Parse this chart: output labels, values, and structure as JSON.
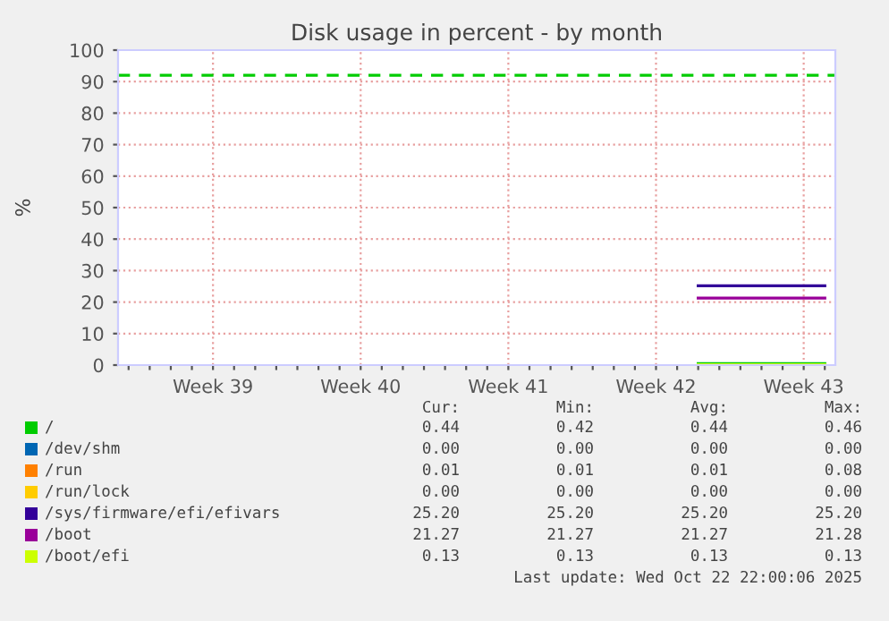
{
  "chart_data": {
    "type": "line",
    "title": "Disk usage in percent - by month",
    "ylabel": "%",
    "categories": [
      null,
      null,
      null,
      null,
      "Week 39",
      null,
      null,
      null,
      null,
      null,
      null,
      "Week 40",
      null,
      null,
      null,
      null,
      null,
      null,
      "Week 41",
      null,
      null,
      null,
      null,
      null,
      null,
      "Week 42",
      null,
      null,
      null,
      null,
      null,
      null,
      "Week 43",
      null
    ],
    "ylim": [
      0,
      100
    ],
    "yticks": [
      0,
      10,
      20,
      30,
      40,
      50,
      60,
      70,
      80,
      90,
      100
    ],
    "grid": true,
    "legend": "bottom",
    "series": [
      {
        "name": "/",
        "color": "#00cc00",
        "values": [
          null,
          null,
          null,
          null,
          null,
          null,
          null,
          null,
          null,
          null,
          null,
          null,
          null,
          null,
          null,
          null,
          null,
          null,
          null,
          null,
          null,
          null,
          null,
          null,
          null,
          null,
          null,
          0.44,
          0.44,
          0.44,
          0.44,
          0.44,
          0.44,
          0.44
        ]
      },
      {
        "name": "/dev/shm",
        "color": "#0066b3",
        "values": [
          null,
          null,
          null,
          null,
          null,
          null,
          null,
          null,
          null,
          null,
          null,
          null,
          null,
          null,
          null,
          null,
          null,
          null,
          null,
          null,
          null,
          null,
          null,
          null,
          null,
          null,
          null,
          null,
          null,
          null,
          null,
          null,
          null,
          null
        ]
      },
      {
        "name": "/run",
        "color": "#ff8000",
        "values": [
          null,
          null,
          null,
          null,
          null,
          null,
          null,
          null,
          null,
          null,
          null,
          null,
          null,
          null,
          null,
          null,
          null,
          null,
          null,
          null,
          null,
          null,
          null,
          null,
          null,
          null,
          null,
          null,
          null,
          null,
          null,
          null,
          null,
          null
        ]
      },
      {
        "name": "/run/lock",
        "color": "#ffcc00",
        "values": [
          null,
          null,
          null,
          null,
          null,
          null,
          null,
          null,
          null,
          null,
          null,
          null,
          null,
          null,
          null,
          null,
          null,
          null,
          null,
          null,
          null,
          null,
          null,
          null,
          null,
          null,
          null,
          null,
          null,
          null,
          null,
          null,
          null,
          null
        ]
      },
      {
        "name": "/sys/firmware/efi/efivars",
        "color": "#330099",
        "values": [
          null,
          null,
          null,
          null,
          null,
          null,
          null,
          null,
          null,
          null,
          null,
          null,
          null,
          null,
          null,
          null,
          null,
          null,
          null,
          null,
          null,
          null,
          null,
          null,
          null,
          null,
          null,
          25.2,
          25.2,
          25.2,
          25.2,
          25.2,
          25.2,
          25.2
        ]
      },
      {
        "name": "/boot",
        "color": "#990099",
        "values": [
          null,
          null,
          null,
          null,
          null,
          null,
          null,
          null,
          null,
          null,
          null,
          null,
          null,
          null,
          null,
          null,
          null,
          null,
          null,
          null,
          null,
          null,
          null,
          null,
          null,
          null,
          null,
          21.27,
          21.27,
          21.27,
          21.27,
          21.27,
          21.27,
          21.27
        ]
      },
      {
        "name": "/boot/efi",
        "color": "#ccff00",
        "values": [
          null,
          null,
          null,
          null,
          null,
          null,
          null,
          null,
          null,
          null,
          null,
          null,
          null,
          null,
          null,
          null,
          null,
          null,
          null,
          null,
          null,
          null,
          null,
          null,
          null,
          null,
          null,
          0.13,
          0.13,
          0.13,
          0.13,
          0.13,
          0.13,
          0.13
        ]
      }
    ],
    "ref_lines": [
      {
        "axis": "y",
        "value": 92,
        "label": null,
        "color": "#00cc00",
        "line_style": "dashed"
      }
    ],
    "annotations": [
      "Cur:",
      "Min:",
      "Avg:",
      "Max:",
      "0.44",
      "0.42",
      "0.44",
      "0.46",
      "0.00",
      "0.00",
      "0.00",
      "0.00",
      "0.01",
      "0.01",
      "0.01",
      "0.08",
      "0.00",
      "0.00",
      "0.00",
      "0.00",
      "25.20",
      "25.20",
      "25.20",
      "25.20",
      "21.27",
      "21.27",
      "21.27",
      "21.28",
      "0.13",
      "0.13",
      "0.13",
      "0.13",
      "Last update: Wed Oct 22 22:00:06 2025"
    ]
  }
}
